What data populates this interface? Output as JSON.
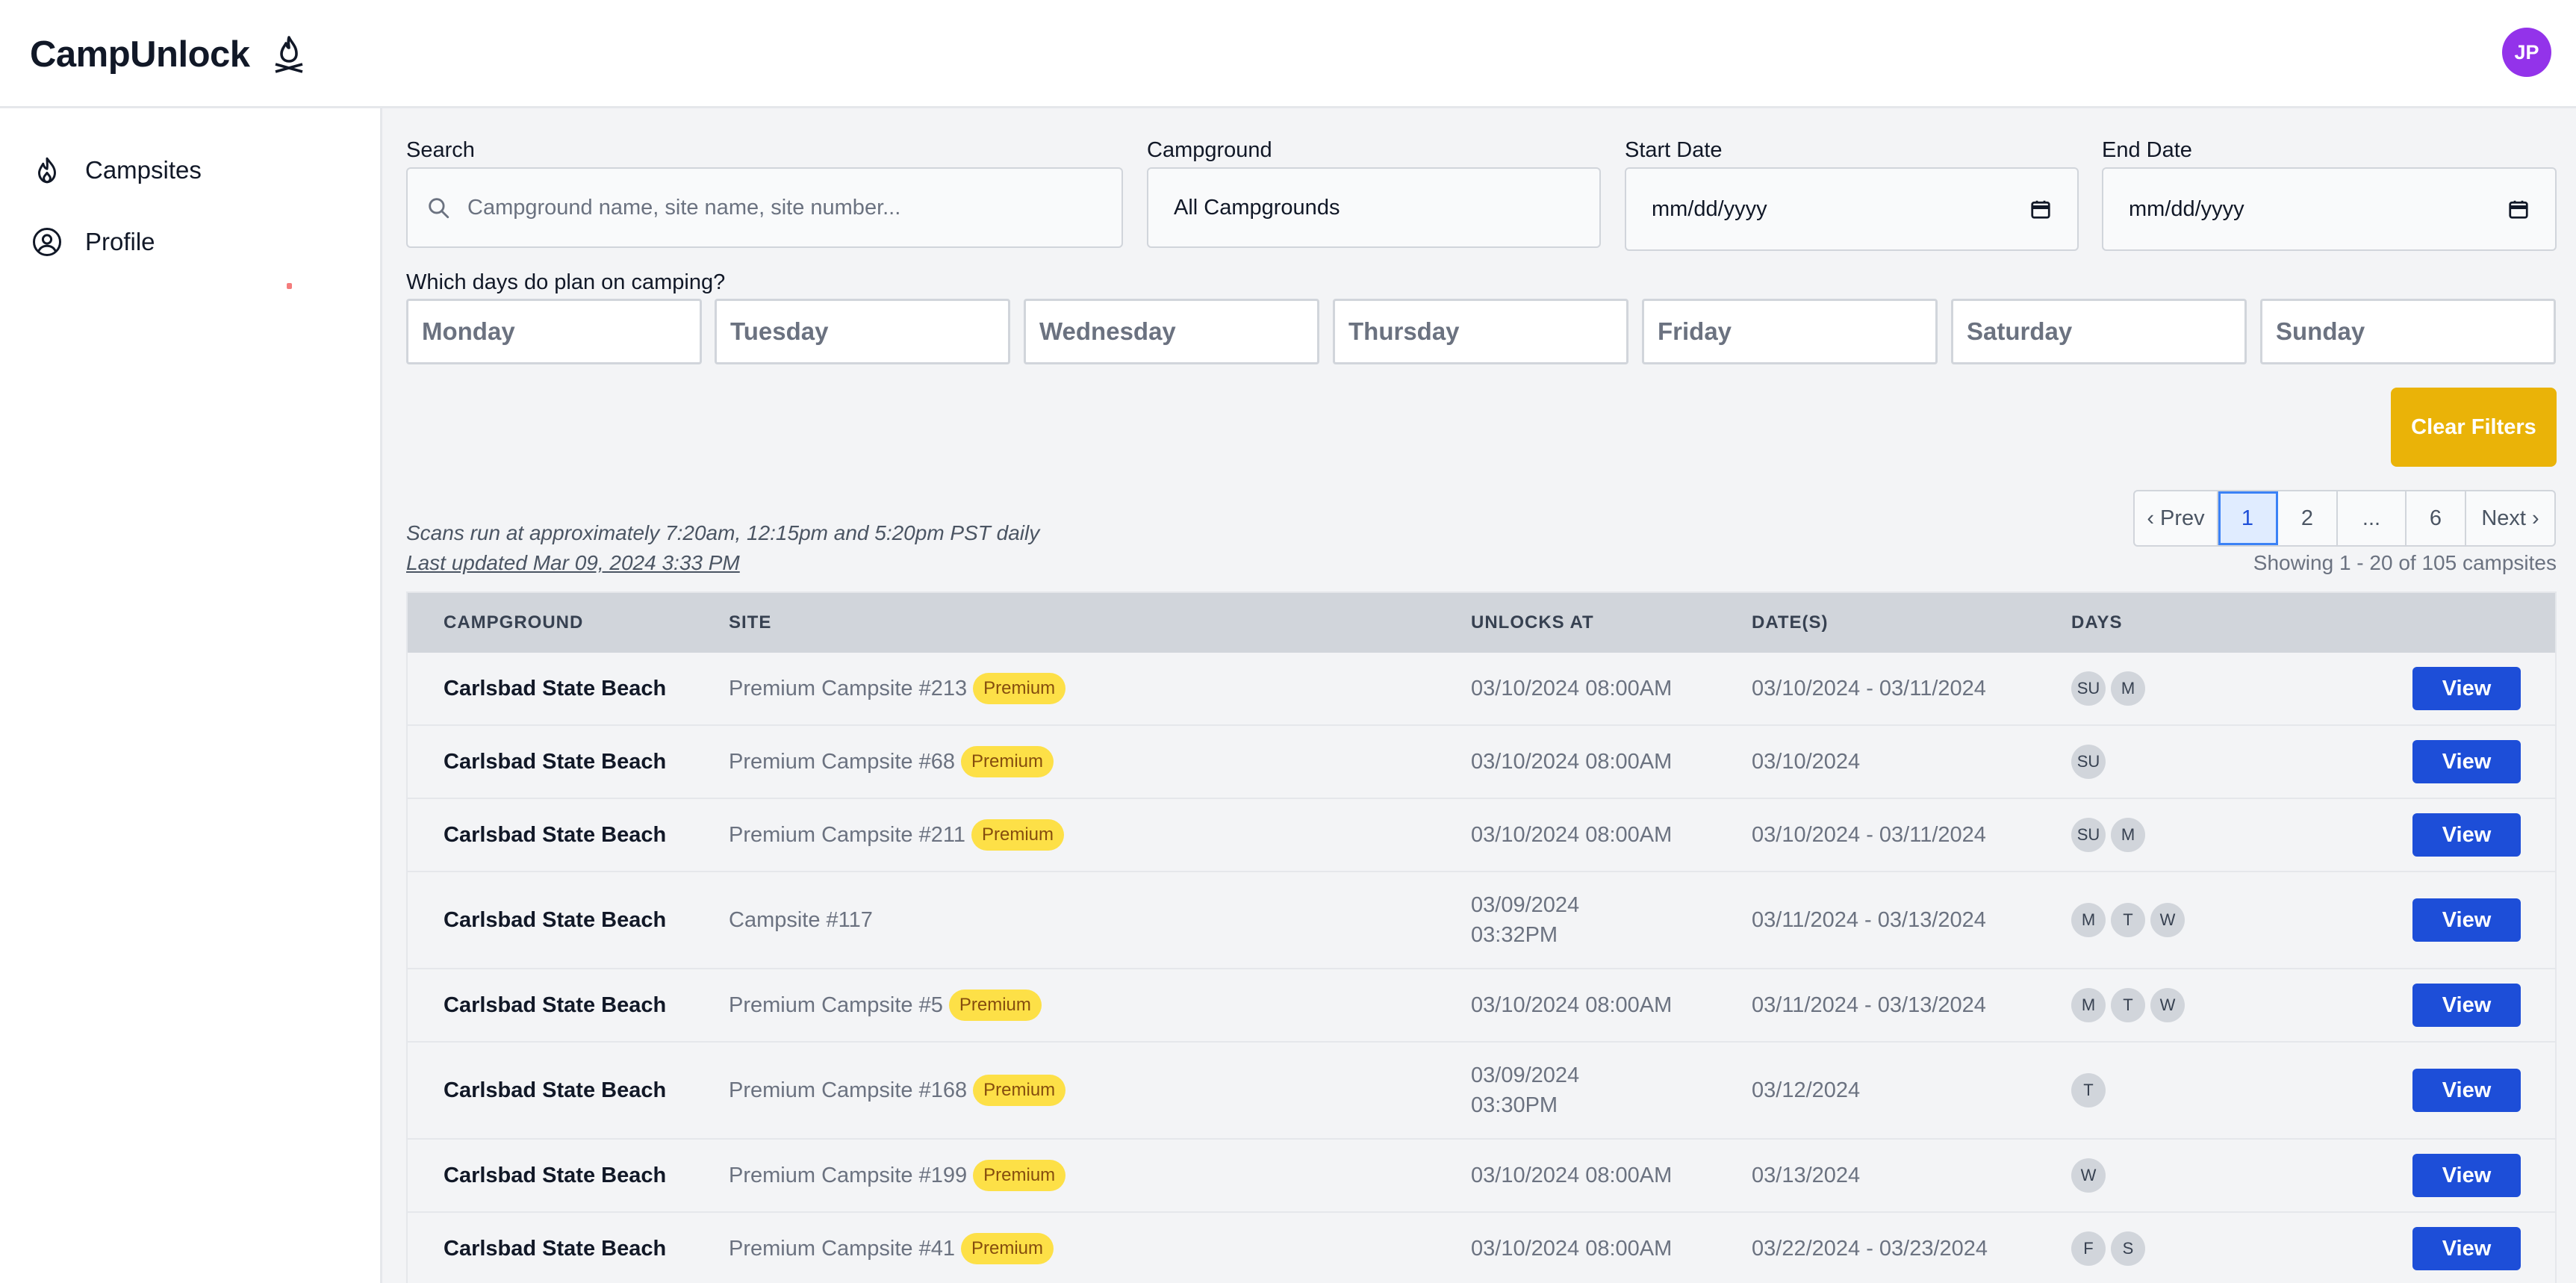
{
  "app": {
    "name": "CampUnlock",
    "avatar_initials": "JP"
  },
  "colors": {
    "accent": "#1d4ed8",
    "warning": "#eab308",
    "badge": "#fde047",
    "avatar": "#9333ea"
  },
  "sidebar": {
    "items": [
      {
        "label": "Campsites",
        "icon": "campfire-icon"
      },
      {
        "label": "Profile",
        "icon": "user-circle-icon"
      }
    ]
  },
  "filters": {
    "search": {
      "label": "Search",
      "placeholder": "Campground name, site name, site number..."
    },
    "campground": {
      "label": "Campground",
      "value": "All Campgrounds"
    },
    "start_date": {
      "label": "Start Date",
      "value": "mm/dd/yyyy"
    },
    "end_date": {
      "label": "End Date",
      "value": "mm/dd/yyyy"
    },
    "days_label": "Which days do plan on camping?",
    "days": [
      "Monday",
      "Tuesday",
      "Wednesday",
      "Thursday",
      "Friday",
      "Saturday",
      "Sunday"
    ],
    "clear_label": "Clear Filters"
  },
  "info": {
    "scan_note": "Scans run at approximately 7:20am, 12:15pm and 5:20pm PST daily",
    "updated_note": "Last updated Mar 09, 2024 3:33 PM",
    "showing": "Showing 1 - 20 of 105 campsites"
  },
  "pagination": {
    "prev": "‹ Prev",
    "pages": [
      "1",
      "2",
      "...",
      "6"
    ],
    "current": "1",
    "next": "Next ›"
  },
  "table": {
    "headers": {
      "campground": "CAMPGROUND",
      "site": "SITE",
      "unlocks": "UNLOCKS AT",
      "dates": "DATE(S)",
      "days": "DAYS"
    },
    "view_label": "View",
    "rows": [
      {
        "campground": "Carlsbad State Beach",
        "site": "Premium Campsite #213",
        "badge": "Premium",
        "unlocks": "03/10/2024 08:00AM",
        "dates": "03/10/2024 - 03/11/2024",
        "days": [
          "SU",
          "M"
        ]
      },
      {
        "campground": "Carlsbad State Beach",
        "site": "Premium Campsite #68",
        "badge": "Premium",
        "unlocks": "03/10/2024 08:00AM",
        "dates": "03/10/2024",
        "days": [
          "SU"
        ]
      },
      {
        "campground": "Carlsbad State Beach",
        "site": "Premium Campsite #211",
        "badge": "Premium",
        "unlocks": "03/10/2024 08:00AM",
        "dates": "03/10/2024 - 03/11/2024",
        "days": [
          "SU",
          "M"
        ]
      },
      {
        "campground": "Carlsbad State Beach",
        "site": "Campsite #117",
        "badge": "",
        "unlocks": "03/09/2024\n03:32PM",
        "dates": "03/11/2024 - 03/13/2024",
        "days": [
          "M",
          "T",
          "W"
        ]
      },
      {
        "campground": "Carlsbad State Beach",
        "site": "Premium Campsite #5",
        "badge": "Premium",
        "unlocks": "03/10/2024 08:00AM",
        "dates": "03/11/2024 - 03/13/2024",
        "days": [
          "M",
          "T",
          "W"
        ]
      },
      {
        "campground": "Carlsbad State Beach",
        "site": "Premium Campsite #168",
        "badge": "Premium",
        "unlocks": "03/09/2024\n03:30PM",
        "dates": "03/12/2024",
        "days": [
          "T"
        ]
      },
      {
        "campground": "Carlsbad State Beach",
        "site": "Premium Campsite #199",
        "badge": "Premium",
        "unlocks": "03/10/2024 08:00AM",
        "dates": "03/13/2024",
        "days": [
          "W"
        ]
      },
      {
        "campground": "Carlsbad State Beach",
        "site": "Premium Campsite #41",
        "badge": "Premium",
        "unlocks": "03/10/2024 08:00AM",
        "dates": "03/22/2024 - 03/23/2024",
        "days": [
          "F",
          "S"
        ]
      }
    ]
  }
}
